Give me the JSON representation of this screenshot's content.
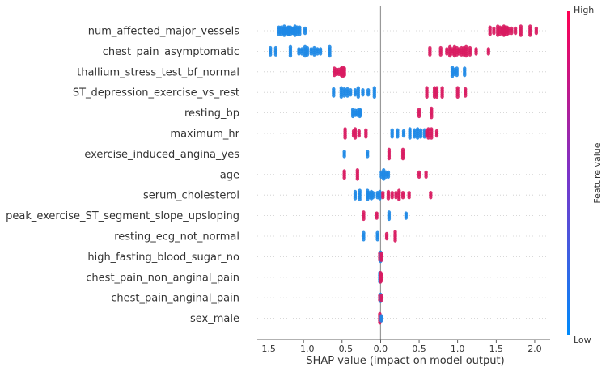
{
  "chart_data": {
    "type": "scatter",
    "xlabel": "SHAP value (impact on model output)",
    "xlim": [
      -1.6,
      2.2
    ],
    "xticks": [
      -1.5,
      -1.0,
      -0.5,
      0.0,
      0.5,
      1.0,
      1.5,
      2.0
    ],
    "xtick_labels": [
      "−1.5",
      "−1.0",
      "−0.5",
      "0.0",
      "0.5",
      "1.0",
      "1.5",
      "2.0"
    ],
    "colorbar": {
      "label": "Feature value",
      "high_label": "High",
      "low_label": "Low",
      "high_color": "#ff0052",
      "low_color": "#008bfb"
    },
    "low_color": "#1e88e5",
    "high_color": "#d81b60",
    "features": [
      {
        "name": "num_affected_major_vessels",
        "points": [
          {
            "x": -1.32,
            "v": "low"
          },
          {
            "x": -1.29,
            "v": "low"
          },
          {
            "x": -1.26,
            "v": "low"
          },
          {
            "x": -1.23,
            "v": "low"
          },
          {
            "x": -1.2,
            "v": "low"
          },
          {
            "x": -1.17,
            "v": "low"
          },
          {
            "x": -1.14,
            "v": "low"
          },
          {
            "x": -1.11,
            "v": "low"
          },
          {
            "x": -1.08,
            "v": "low"
          },
          {
            "x": -1.05,
            "v": "low"
          },
          {
            "x": -0.98,
            "v": "low"
          },
          {
            "x": -1.25,
            "v": "low"
          },
          {
            "x": -1.19,
            "v": "low"
          },
          {
            "x": -1.13,
            "v": "low"
          },
          {
            "x": 1.42,
            "v": "high"
          },
          {
            "x": 1.47,
            "v": "high"
          },
          {
            "x": 1.52,
            "v": "high"
          },
          {
            "x": 1.58,
            "v": "high"
          },
          {
            "x": 1.61,
            "v": "high"
          },
          {
            "x": 1.64,
            "v": "high"
          },
          {
            "x": 1.7,
            "v": "high"
          },
          {
            "x": 1.75,
            "v": "high"
          },
          {
            "x": 1.82,
            "v": "high"
          },
          {
            "x": 1.94,
            "v": "high"
          },
          {
            "x": 2.02,
            "v": "high"
          },
          {
            "x": 1.55,
            "v": "high"
          },
          {
            "x": 1.6,
            "v": "high"
          },
          {
            "x": 1.66,
            "v": "high"
          }
        ]
      },
      {
        "name": "chest_pain_asymptomatic",
        "points": [
          {
            "x": -1.43,
            "v": "low"
          },
          {
            "x": -1.36,
            "v": "low"
          },
          {
            "x": -1.17,
            "v": "low"
          },
          {
            "x": -1.06,
            "v": "low"
          },
          {
            "x": -1.02,
            "v": "low"
          },
          {
            "x": -0.98,
            "v": "low"
          },
          {
            "x": -0.95,
            "v": "low"
          },
          {
            "x": -0.9,
            "v": "low"
          },
          {
            "x": -0.86,
            "v": "low"
          },
          {
            "x": -0.82,
            "v": "low"
          },
          {
            "x": -0.78,
            "v": "low"
          },
          {
            "x": -0.66,
            "v": "low"
          },
          {
            "x": 0.64,
            "v": "high"
          },
          {
            "x": 0.78,
            "v": "high"
          },
          {
            "x": 0.86,
            "v": "high"
          },
          {
            "x": 0.9,
            "v": "high"
          },
          {
            "x": 0.93,
            "v": "high"
          },
          {
            "x": 0.96,
            "v": "high"
          },
          {
            "x": 0.99,
            "v": "high"
          },
          {
            "x": 1.02,
            "v": "high"
          },
          {
            "x": 1.05,
            "v": "high"
          },
          {
            "x": 1.08,
            "v": "high"
          },
          {
            "x": 1.11,
            "v": "high"
          },
          {
            "x": 1.16,
            "v": "high"
          },
          {
            "x": 1.24,
            "v": "high"
          },
          {
            "x": 1.4,
            "v": "high"
          }
        ]
      },
      {
        "name": "thallium_stress_test_bf_normal",
        "points": [
          {
            "x": -0.6,
            "v": "high"
          },
          {
            "x": -0.57,
            "v": "high"
          },
          {
            "x": -0.54,
            "v": "high"
          },
          {
            "x": -0.51,
            "v": "high"
          },
          {
            "x": -0.49,
            "v": "high"
          },
          {
            "x": -0.47,
            "v": "high"
          },
          {
            "x": 0.93,
            "v": "low"
          },
          {
            "x": 0.96,
            "v": "low"
          },
          {
            "x": 0.99,
            "v": "low"
          },
          {
            "x": 1.09,
            "v": "low"
          }
        ]
      },
      {
        "name": "ST_depression_exercise_vs_rest",
        "points": [
          {
            "x": -0.61,
            "v": "low"
          },
          {
            "x": -0.51,
            "v": "low"
          },
          {
            "x": -0.47,
            "v": "low"
          },
          {
            "x": -0.43,
            "v": "low"
          },
          {
            "x": -0.39,
            "v": "low"
          },
          {
            "x": -0.33,
            "v": "low"
          },
          {
            "x": -0.29,
            "v": "low"
          },
          {
            "x": -0.23,
            "v": "low"
          },
          {
            "x": -0.16,
            "v": "low"
          },
          {
            "x": -0.08,
            "v": "low"
          },
          {
            "x": 0.6,
            "v": "high"
          },
          {
            "x": 0.7,
            "v": "high"
          },
          {
            "x": 0.73,
            "v": "high"
          },
          {
            "x": 0.8,
            "v": "high"
          },
          {
            "x": 1.0,
            "v": "high"
          },
          {
            "x": 1.1,
            "v": "high"
          }
        ]
      },
      {
        "name": "resting_bp",
        "points": [
          {
            "x": -0.36,
            "v": "low"
          },
          {
            "x": -0.33,
            "v": "low"
          },
          {
            "x": -0.3,
            "v": "low"
          },
          {
            "x": -0.27,
            "v": "low"
          },
          {
            "x": -0.26,
            "v": "low"
          },
          {
            "x": 0.5,
            "v": "high"
          },
          {
            "x": 0.66,
            "v": "high"
          }
        ]
      },
      {
        "name": "maximum_hr",
        "points": [
          {
            "x": -0.46,
            "v": "high"
          },
          {
            "x": -0.35,
            "v": "high"
          },
          {
            "x": -0.33,
            "v": "high"
          },
          {
            "x": -0.28,
            "v": "high"
          },
          {
            "x": -0.19,
            "v": "high"
          },
          {
            "x": 0.15,
            "v": "low"
          },
          {
            "x": 0.22,
            "v": "low"
          },
          {
            "x": 0.3,
            "v": "low"
          },
          {
            "x": 0.38,
            "v": "low"
          },
          {
            "x": 0.44,
            "v": "low"
          },
          {
            "x": 0.48,
            "v": "low"
          },
          {
            "x": 0.52,
            "v": "low"
          },
          {
            "x": 0.57,
            "v": "low"
          },
          {
            "x": 0.6,
            "v": "high"
          },
          {
            "x": 0.62,
            "v": "high"
          },
          {
            "x": 0.66,
            "v": "high"
          },
          {
            "x": 0.73,
            "v": "high"
          }
        ]
      },
      {
        "name": "exercise_induced_angina_yes",
        "points": [
          {
            "x": -0.47,
            "v": "low"
          },
          {
            "x": -0.17,
            "v": "low"
          },
          {
            "x": 0.11,
            "v": "high"
          },
          {
            "x": 0.29,
            "v": "high"
          }
        ]
      },
      {
        "name": "age",
        "points": [
          {
            "x": -0.47,
            "v": "high"
          },
          {
            "x": -0.3,
            "v": "high"
          },
          {
            "x": 0.01,
            "v": "low"
          },
          {
            "x": 0.04,
            "v": "low"
          },
          {
            "x": 0.07,
            "v": "low"
          },
          {
            "x": 0.1,
            "v": "low"
          },
          {
            "x": 0.5,
            "v": "high"
          },
          {
            "x": 0.59,
            "v": "high"
          }
        ]
      },
      {
        "name": "serum_cholesterol",
        "points": [
          {
            "x": -0.33,
            "v": "low"
          },
          {
            "x": -0.27,
            "v": "low"
          },
          {
            "x": -0.17,
            "v": "low"
          },
          {
            "x": -0.15,
            "v": "low"
          },
          {
            "x": -0.12,
            "v": "low"
          },
          {
            "x": -0.1,
            "v": "low"
          },
          {
            "x": -0.04,
            "v": "low"
          },
          {
            "x": -0.01,
            "v": "low"
          },
          {
            "x": 0.03,
            "v": "high"
          },
          {
            "x": 0.1,
            "v": "high"
          },
          {
            "x": 0.15,
            "v": "high"
          },
          {
            "x": 0.2,
            "v": "high"
          },
          {
            "x": 0.24,
            "v": "high"
          },
          {
            "x": 0.29,
            "v": "high"
          },
          {
            "x": 0.37,
            "v": "high"
          },
          {
            "x": 0.65,
            "v": "high"
          }
        ]
      },
      {
        "name": "peak_exercise_ST_segment_slope_upsloping",
        "points": [
          {
            "x": -0.22,
            "v": "high"
          },
          {
            "x": -0.05,
            "v": "high"
          },
          {
            "x": 0.11,
            "v": "low"
          },
          {
            "x": 0.33,
            "v": "low"
          }
        ]
      },
      {
        "name": "resting_ecg_not_normal",
        "points": [
          {
            "x": -0.22,
            "v": "low"
          },
          {
            "x": -0.04,
            "v": "low"
          },
          {
            "x": 0.08,
            "v": "high"
          },
          {
            "x": 0.19,
            "v": "high"
          }
        ]
      },
      {
        "name": "high_fasting_blood_sugar_no",
        "points": [
          {
            "x": -0.01,
            "v": "high"
          },
          {
            "x": 0.0,
            "v": "low"
          },
          {
            "x": 0.01,
            "v": "high"
          }
        ]
      },
      {
        "name": "chest_pain_non_anginal_pain",
        "points": [
          {
            "x": -0.01,
            "v": "low"
          },
          {
            "x": 0.0,
            "v": "high"
          },
          {
            "x": 0.01,
            "v": "high"
          }
        ]
      },
      {
        "name": "chest_pain_anginal_pain",
        "points": [
          {
            "x": -0.01,
            "v": "high"
          },
          {
            "x": 0.0,
            "v": "low"
          },
          {
            "x": 0.01,
            "v": "high"
          }
        ]
      },
      {
        "name": "sex_male",
        "points": [
          {
            "x": -0.01,
            "v": "high"
          },
          {
            "x": 0.0,
            "v": "high"
          },
          {
            "x": 0.01,
            "v": "low"
          }
        ]
      }
    ]
  }
}
